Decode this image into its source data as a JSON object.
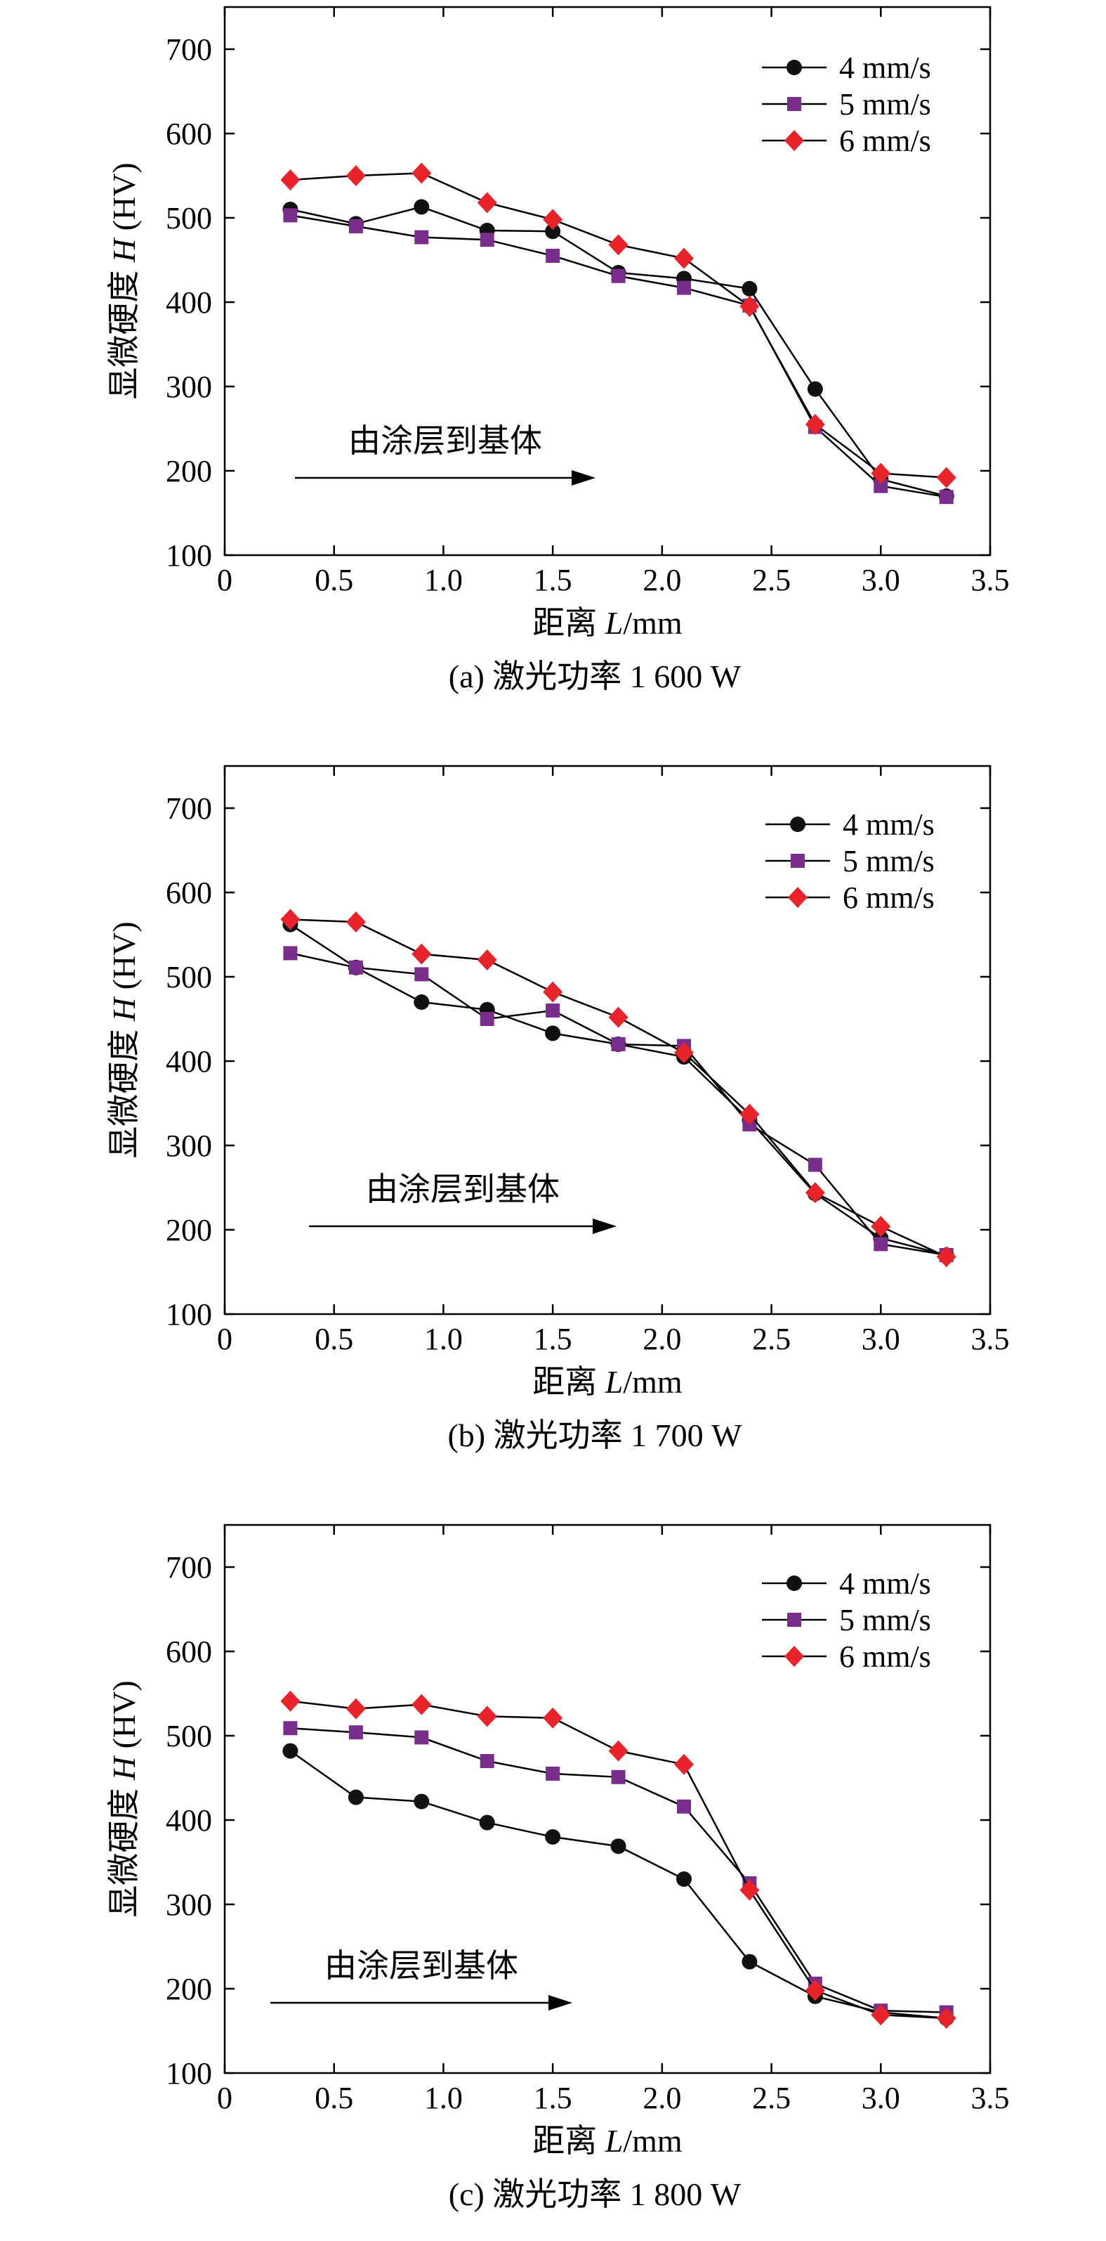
{
  "chart_data": [
    {
      "type": "line",
      "caption": "(a) 激光功率 1 600 W",
      "xlabel_prefix": "距离 ",
      "xlabel_var": "L",
      "xlabel_unit": "/mm",
      "ylabel_prefix": "显微硬度 ",
      "ylabel_var": "H",
      "ylabel_unit": " (HV)",
      "xlim": [
        0,
        3.5
      ],
      "ylim": [
        100,
        750
      ],
      "xticks": [
        "0",
        "0.5",
        "1.0",
        "1.5",
        "2.0",
        "2.5",
        "3.0",
        "3.5"
      ],
      "yticks": [
        "100",
        "200",
        "300",
        "400",
        "500",
        "600",
        "700"
      ],
      "legend_position": "top-right",
      "annotation": "由涂层到基体",
      "x": [
        0.3,
        0.6,
        0.9,
        1.2,
        1.5,
        1.8,
        2.1,
        2.4,
        2.7,
        3.0,
        3.3
      ],
      "series": [
        {
          "name": "4 mm/s",
          "marker": "circle",
          "color": "#111111",
          "values": [
            510,
            493,
            513,
            485,
            484,
            435,
            428,
            416,
            297,
            190,
            170
          ]
        },
        {
          "name": "5 mm/s",
          "marker": "square",
          "color": "#7a2e8c",
          "values": [
            503,
            490,
            477,
            474,
            455,
            431,
            417,
            396,
            252,
            182,
            169
          ]
        },
        {
          "name": "6 mm/s",
          "marker": "diamond",
          "color": "#e8232a",
          "values": [
            545,
            550,
            553,
            518,
            498,
            468,
            452,
            395,
            255,
            197,
            192
          ]
        }
      ]
    },
    {
      "type": "line",
      "caption": "(b) 激光功率 1 700 W",
      "xlabel_prefix": "距离 ",
      "xlabel_var": "L",
      "xlabel_unit": "/mm",
      "ylabel_prefix": "显微硬度 ",
      "ylabel_var": "H",
      "ylabel_unit": " (HV)",
      "xlim": [
        0,
        3.5
      ],
      "ylim": [
        100,
        750
      ],
      "xticks": [
        "0",
        "0.5",
        "1.0",
        "1.5",
        "2.0",
        "2.5",
        "3.0",
        "3.5"
      ],
      "yticks": [
        "100",
        "200",
        "300",
        "400",
        "500",
        "600",
        "700"
      ],
      "legend_position": "top-right",
      "annotation": "由涂层到基体",
      "x": [
        0.3,
        0.6,
        0.9,
        1.2,
        1.5,
        1.8,
        2.1,
        2.4,
        2.7,
        3.0,
        3.3
      ],
      "series": [
        {
          "name": "4 mm/s",
          "marker": "circle",
          "color": "#111111",
          "values": [
            562,
            511,
            470,
            461,
            433,
            420,
            405,
            330,
            243,
            190,
            170
          ]
        },
        {
          "name": "5 mm/s",
          "marker": "square",
          "color": "#7a2e8c",
          "values": [
            528,
            511,
            503,
            450,
            460,
            420,
            418,
            325,
            277,
            183,
            170
          ]
        },
        {
          "name": "6 mm/s",
          "marker": "diamond",
          "color": "#e8232a",
          "values": [
            568,
            565,
            527,
            520,
            482,
            452,
            410,
            337,
            244,
            204,
            168
          ]
        }
      ]
    },
    {
      "type": "line",
      "caption": "(c) 激光功率 1 800 W",
      "xlabel_prefix": "距离 ",
      "xlabel_var": "L",
      "xlabel_unit": "/mm",
      "ylabel_prefix": "显微硬度 ",
      "ylabel_var": "H",
      "ylabel_unit": " (HV)",
      "xlim": [
        0,
        3.5
      ],
      "ylim": [
        100,
        750
      ],
      "xticks": [
        "0",
        "0.5",
        "1.0",
        "1.5",
        "2.0",
        "2.5",
        "3.0",
        "3.5"
      ],
      "yticks": [
        "100",
        "200",
        "300",
        "400",
        "500",
        "600",
        "700"
      ],
      "legend_position": "top-right",
      "annotation": "由涂层到基体",
      "x": [
        0.3,
        0.6,
        0.9,
        1.2,
        1.5,
        1.8,
        2.1,
        2.4,
        2.7,
        3.0,
        3.3
      ],
      "series": [
        {
          "name": "4 mm/s",
          "marker": "circle",
          "color": "#111111",
          "values": [
            482,
            427,
            422,
            397,
            380,
            369,
            330,
            232,
            191,
            172,
            165
          ]
        },
        {
          "name": "5 mm/s",
          "marker": "square",
          "color": "#7a2e8c",
          "values": [
            509,
            504,
            498,
            470,
            455,
            451,
            416,
            325,
            206,
            174,
            172
          ]
        },
        {
          "name": "6 mm/s",
          "marker": "diamond",
          "color": "#e8232a",
          "values": [
            541,
            532,
            537,
            523,
            521,
            482,
            466,
            317,
            198,
            169,
            165
          ]
        }
      ]
    }
  ]
}
